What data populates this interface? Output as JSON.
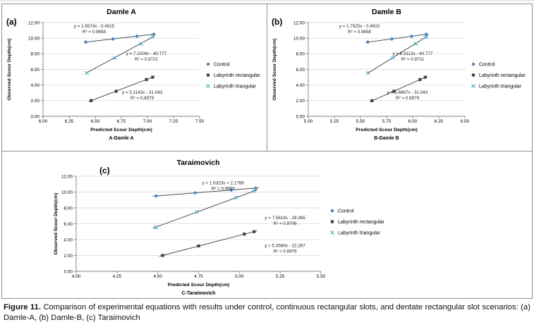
{
  "caption": {
    "label": "Figure 11.",
    "text": "Comparison of experimental equations with results under control, continuous rectangular slots, and dentate rectangular slot scenarios: (a) Damle-A, (b) Damle-B, (c) Taraimovich"
  },
  "colors": {
    "control": "#4f81bd",
    "rectangular": "#3d4250",
    "triangular": "#4bacc6",
    "trend_line": "#4d4d4d",
    "grid": "#d6d6d6",
    "axis": "#7f7f7f",
    "annotation": "#262626",
    "panel_border": "#8f8f8f"
  },
  "chart_data": [
    {
      "type": "scatter",
      "panel_label": "(a)",
      "title": "Damle A",
      "xlabel": "Predicted Scour Depth(cm)",
      "axis_sublabel": "A-Damle A",
      "ylabel": "Observed Scour Depth(cm)",
      "xlim": [
        6.0,
        7.5
      ],
      "ylim": [
        0,
        12
      ],
      "xtick_values": [
        6.0,
        6.25,
        6.5,
        6.75,
        7.0,
        7.25,
        7.5
      ],
      "xtick_labels": [
        "6.00",
        "6.25",
        "6.50",
        "6.75",
        "7.00",
        "7.25",
        "7.50"
      ],
      "ytick_values": [
        0,
        2,
        4,
        6,
        8,
        10,
        12
      ],
      "ytick_labels": [
        "0.00",
        "2.00",
        "4.00",
        "6.00",
        "8.00",
        "10.00",
        "12.00"
      ],
      "grid": "horizontal",
      "legend_position": "right",
      "series": [
        {
          "name": "Control",
          "marker": "diamond",
          "color_key": "control",
          "points": [
            [
              6.41,
              9.5
            ],
            [
              6.67,
              9.9
            ],
            [
              6.9,
              10.25
            ],
            [
              7.06,
              10.5
            ]
          ],
          "trend": {
            "x1": 6.39,
            "x2": 7.08,
            "slope": 1.5574,
            "intercept": -0.4915
          },
          "equation": "y = 1.5574x - 0.4915",
          "r_squared": "R² = 0.9658",
          "eq_anchor": [
            6.49,
            11.35
          ]
        },
        {
          "name": "Labyrinth rectangular",
          "marker": "square",
          "color_key": "rectangular",
          "points": [
            [
              6.46,
              2.0
            ],
            [
              6.7,
              3.2
            ],
            [
              6.99,
              4.7
            ],
            [
              7.05,
              5.0
            ]
          ],
          "trend": {
            "x1": 6.44,
            "x2": 7.07,
            "slope": 5.1143,
            "intercept": -31.043
          },
          "equation": "y = 5.1143x - 31.043",
          "r_squared": "R² = 0.8979",
          "eq_anchor": [
            6.95,
            2.9
          ]
        },
        {
          "name": "Labyrinth triangular",
          "marker": "x",
          "color_key": "triangular",
          "points": [
            [
              6.42,
              5.55
            ],
            [
              6.69,
              7.5
            ],
            [
              6.94,
              9.3
            ],
            [
              7.05,
              10.15
            ]
          ],
          "trend": {
            "x1": 6.41,
            "x2": 7.07,
            "slope": 7.2209,
            "intercept": -40.777
          },
          "equation": "y = 7.2209x - 40.777",
          "r_squared": "R² = 0.9721",
          "eq_anchor": [
            6.99,
            7.85
          ]
        }
      ]
    },
    {
      "type": "scatter",
      "panel_label": "(b)",
      "title": "Damle B",
      "xlabel": "Predicted Scour Depth(cm)",
      "axis_sublabel": "B-Damle B",
      "ylabel": "Observed Scour Depth(cm)",
      "xlim": [
        5.0,
        6.5
      ],
      "ylim": [
        0,
        12
      ],
      "xtick_values": [
        5.0,
        5.25,
        5.5,
        5.75,
        6.0,
        6.25,
        6.5
      ],
      "xtick_labels": [
        "5.00",
        "5.25",
        "5.50",
        "5.75",
        "6.00",
        "6.25",
        "6.50"
      ],
      "ytick_values": [
        0,
        2,
        4,
        6,
        8,
        10,
        12
      ],
      "ytick_labels": [
        "0.00",
        "2.00",
        "4.00",
        "6.00",
        "8.00",
        "10.00",
        "12.00"
      ],
      "grid": "horizontal",
      "legend_position": "right",
      "series": [
        {
          "name": "Control",
          "marker": "diamond",
          "color_key": "control",
          "points": [
            [
              5.57,
              9.5
            ],
            [
              5.8,
              9.9
            ],
            [
              5.99,
              10.25
            ],
            [
              6.13,
              10.5
            ]
          ],
          "trend": {
            "x1": 5.55,
            "x2": 6.15,
            "slope": 1.7925,
            "intercept": -0.4915
          },
          "equation": "y = 1.7925x - 0.4915",
          "r_squared": "R² = 0.9658",
          "eq_anchor": [
            5.49,
            11.35
          ]
        },
        {
          "name": "Labyrinth rectangular",
          "marker": "square",
          "color_key": "rectangular",
          "points": [
            [
              5.61,
              2.0
            ],
            [
              5.82,
              3.2
            ],
            [
              6.07,
              4.7
            ],
            [
              6.12,
              5.0
            ]
          ],
          "trend": {
            "x1": 5.59,
            "x2": 6.14,
            "slope": 5.8867,
            "intercept": -31.043
          },
          "equation": "y = 5.8867x - 31.043",
          "r_squared": "R² = 0.8979",
          "eq_anchor": [
            5.95,
            2.9
          ]
        },
        {
          "name": "Labyrinth triangular",
          "marker": "x",
          "color_key": "triangular",
          "points": [
            [
              5.57,
              5.55
            ],
            [
              5.81,
              7.5
            ],
            [
              6.03,
              9.3
            ],
            [
              6.13,
              10.15
            ]
          ],
          "trend": {
            "x1": 5.56,
            "x2": 6.15,
            "slope": 8.3113,
            "intercept": -40.777
          },
          "equation": "y = 8.3113x - 40.777",
          "r_squared": "R² = 0.9721",
          "eq_anchor": [
            6.0,
            7.85
          ]
        }
      ]
    },
    {
      "type": "scatter",
      "panel_label": "(c)",
      "title": "Taraimovich",
      "xlabel": "Predicted Scour Depth(cm)",
      "axis_sublabel": "C-Taraimovich",
      "ylabel": "Observed Scour Depth(cm)",
      "xlim": [
        4.0,
        5.5
      ],
      "ylim": [
        0,
        12
      ],
      "xtick_values": [
        4.0,
        4.25,
        4.5,
        4.75,
        5.0,
        5.25,
        5.5
      ],
      "xtick_labels": [
        "4.00",
        "4.25",
        "4.50",
        "4.75",
        "5.00",
        "5.25",
        "5.50"
      ],
      "ytick_values": [
        0,
        2,
        4,
        6,
        8,
        10,
        12
      ],
      "ytick_labels": [
        "0.00",
        "2.00",
        "4.00",
        "6.00",
        "8.00",
        "10.00",
        "12.00"
      ],
      "grid": "horizontal",
      "legend_position": "right",
      "series": [
        {
          "name": "Control",
          "marker": "diamond",
          "color_key": "control",
          "points": [
            [
              4.49,
              9.5
            ],
            [
              4.73,
              9.9
            ],
            [
              4.95,
              10.25
            ],
            [
              5.1,
              10.5
            ]
          ],
          "trend": {
            "x1": 4.47,
            "x2": 5.12,
            "slope": 1.6323,
            "intercept": 2.1786
          },
          "equation": "y = 1.6323x + 2.1786",
          "r_squared": "R² = 0.9659",
          "eq_anchor": [
            4.9,
            11.0
          ]
        },
        {
          "name": "Labyrinth rectangular",
          "marker": "square",
          "color_key": "rectangular",
          "points": [
            [
              4.53,
              2.0
            ],
            [
              4.75,
              3.2
            ],
            [
              5.03,
              4.7
            ],
            [
              5.09,
              5.0
            ]
          ],
          "trend": {
            "x1": 4.51,
            "x2": 5.11,
            "slope": 5.3589,
            "intercept": -22.267
          },
          "equation": "y = 5.3589x - 22.267",
          "r_squared": "R² = 0.8976",
          "eq_anchor": [
            5.28,
            3.05
          ]
        },
        {
          "name": "Labyrinth triangular",
          "marker": "x",
          "color_key": "triangular",
          "points": [
            [
              4.49,
              5.55
            ],
            [
              4.74,
              7.5
            ],
            [
              4.98,
              9.3
            ],
            [
              5.09,
              10.15
            ]
          ],
          "trend": {
            "x1": 4.47,
            "x2": 5.11,
            "slope": 7.5618,
            "intercept": -28.365
          },
          "equation": "y = 7.5618x - 28.365",
          "r_squared": "R² = 0.9706",
          "eq_anchor": [
            5.28,
            6.6
          ]
        }
      ]
    }
  ]
}
